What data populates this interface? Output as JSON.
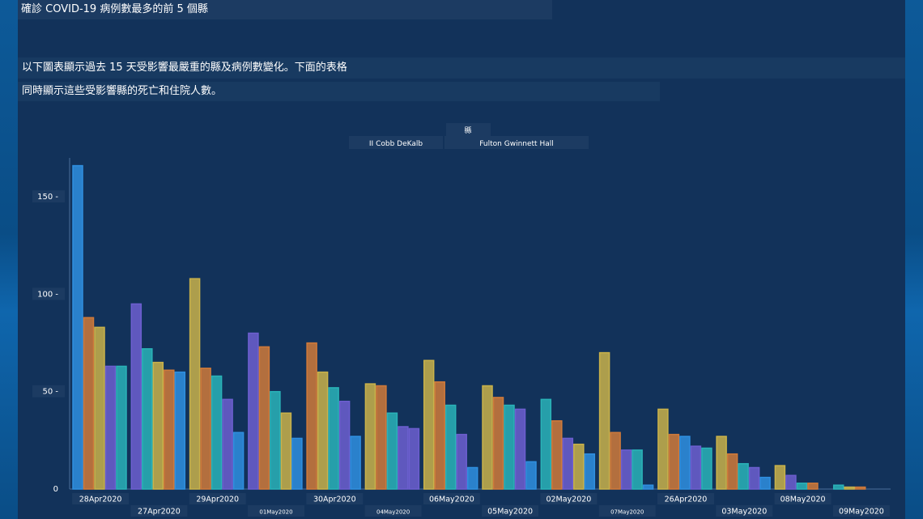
{
  "title": "確診 COVID-19 病例數最多的前 5 個縣",
  "description": {
    "line1": "以下圖表顯示過去 15 天受影響最嚴重的縣及病例數變化。下面的表格",
    "line2": "同時顯示這些受影響縣的死亡和住院人數。"
  },
  "colors": {
    "background": "#12325a",
    "bar_blue": "#2f8fe0",
    "bar_orange": "#d07a3a",
    "bar_gold": "#c9b24a",
    "bar_purple": "#6d5fd0",
    "bar_teal": "#2ab3b8"
  },
  "chart_data": {
    "type": "bar",
    "legend_title": "縣",
    "legend_entries": [
      "II Cobb DeKalb",
      "Fulton Gwinnett Hall"
    ],
    "yticks": [
      "150 -",
      "100 -",
      "50 -",
      "0"
    ],
    "ylim": [
      0,
      170
    ],
    "categories": [
      "28Apr2020",
      "27Apr2020",
      "29Apr2020",
      "01May2020",
      "30Apr2020",
      "04May2020",
      "06May2020",
      "05May2020",
      "02May2020",
      "07May2020",
      "26Apr2020",
      "03May2020",
      "08May2020",
      "09May2020"
    ],
    "groups": [
      [
        {
          "v": 166,
          "c": "bar_blue"
        },
        {
          "v": 88,
          "c": "bar_orange"
        },
        {
          "v": 83,
          "c": "bar_gold"
        },
        {
          "v": 63,
          "c": "bar_purple"
        },
        {
          "v": 63,
          "c": "bar_teal"
        }
      ],
      [
        {
          "v": 95,
          "c": "bar_purple"
        },
        {
          "v": 72,
          "c": "bar_teal"
        },
        {
          "v": 65,
          "c": "bar_gold"
        },
        {
          "v": 61,
          "c": "bar_orange"
        },
        {
          "v": 60,
          "c": "bar_blue"
        }
      ],
      [
        {
          "v": 108,
          "c": "bar_gold"
        },
        {
          "v": 62,
          "c": "bar_orange"
        },
        {
          "v": 58,
          "c": "bar_teal"
        },
        {
          "v": 46,
          "c": "bar_purple"
        },
        {
          "v": 29,
          "c": "bar_blue"
        }
      ],
      [
        {
          "v": 80,
          "c": "bar_purple"
        },
        {
          "v": 73,
          "c": "bar_orange"
        },
        {
          "v": 50,
          "c": "bar_teal"
        },
        {
          "v": 39,
          "c": "bar_gold"
        },
        {
          "v": 26,
          "c": "bar_blue"
        }
      ],
      [
        {
          "v": 75,
          "c": "bar_orange"
        },
        {
          "v": 60,
          "c": "bar_gold"
        },
        {
          "v": 52,
          "c": "bar_teal"
        },
        {
          "v": 45,
          "c": "bar_purple"
        },
        {
          "v": 27,
          "c": "bar_blue"
        }
      ],
      [
        {
          "v": 54,
          "c": "bar_gold"
        },
        {
          "v": 53,
          "c": "bar_orange"
        },
        {
          "v": 39,
          "c": "bar_teal"
        },
        {
          "v": 32,
          "c": "bar_purple"
        },
        {
          "v": 31,
          "c": "bar_purple"
        }
      ],
      [
        {
          "v": 66,
          "c": "bar_gold"
        },
        {
          "v": 55,
          "c": "bar_orange"
        },
        {
          "v": 43,
          "c": "bar_teal"
        },
        {
          "v": 28,
          "c": "bar_purple"
        },
        {
          "v": 11,
          "c": "bar_blue"
        }
      ],
      [
        {
          "v": 53,
          "c": "bar_gold"
        },
        {
          "v": 47,
          "c": "bar_orange"
        },
        {
          "v": 43,
          "c": "bar_teal"
        },
        {
          "v": 41,
          "c": "bar_purple"
        },
        {
          "v": 14,
          "c": "bar_blue"
        }
      ],
      [
        {
          "v": 46,
          "c": "bar_teal"
        },
        {
          "v": 35,
          "c": "bar_orange"
        },
        {
          "v": 26,
          "c": "bar_purple"
        },
        {
          "v": 23,
          "c": "bar_gold"
        },
        {
          "v": 18,
          "c": "bar_blue"
        }
      ],
      [
        {
          "v": 70,
          "c": "bar_gold"
        },
        {
          "v": 29,
          "c": "bar_orange"
        },
        {
          "v": 20,
          "c": "bar_purple"
        },
        {
          "v": 20,
          "c": "bar_teal"
        },
        {
          "v": 2,
          "c": "bar_blue"
        }
      ],
      [
        {
          "v": 41,
          "c": "bar_gold"
        },
        {
          "v": 28,
          "c": "bar_orange"
        },
        {
          "v": 27,
          "c": "bar_blue"
        },
        {
          "v": 22,
          "c": "bar_purple"
        },
        {
          "v": 21,
          "c": "bar_teal"
        }
      ],
      [
        {
          "v": 27,
          "c": "bar_gold"
        },
        {
          "v": 18,
          "c": "bar_orange"
        },
        {
          "v": 13,
          "c": "bar_teal"
        },
        {
          "v": 11,
          "c": "bar_purple"
        },
        {
          "v": 6,
          "c": "bar_blue"
        }
      ],
      [
        {
          "v": 12,
          "c": "bar_gold"
        },
        {
          "v": 7,
          "c": "bar_purple"
        },
        {
          "v": 3,
          "c": "bar_teal"
        },
        {
          "v": 3,
          "c": "bar_orange"
        }
      ],
      [
        {
          "v": 2,
          "c": "bar_teal"
        },
        {
          "v": 1,
          "c": "bar_gold"
        },
        {
          "v": 1,
          "c": "bar_orange"
        }
      ]
    ]
  }
}
